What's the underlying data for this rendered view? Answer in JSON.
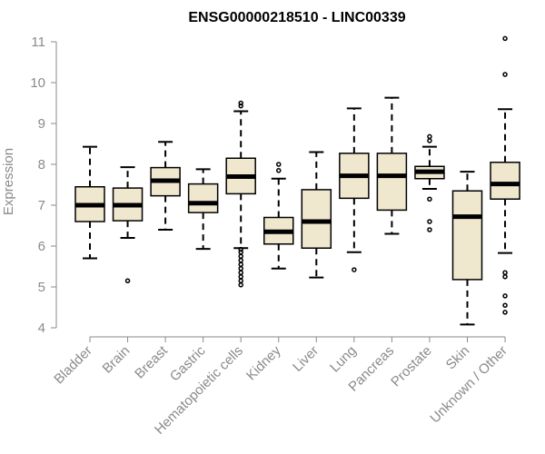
{
  "chart_data": {
    "type": "box",
    "title": "ENSG00000218510 - LINC00339",
    "xlabel": "",
    "ylabel": "Expression",
    "ylim": [
      4,
      11
    ],
    "yticks": [
      "4",
      "5",
      "6",
      "7",
      "8",
      "9",
      "10",
      "11"
    ],
    "grid": false,
    "colors": {
      "box_fill": "#efe8cf",
      "stroke": "#000000",
      "axis": "#8a8a8a"
    },
    "categories": [
      "Bladder",
      "Brain",
      "Breast",
      "Gastric",
      "Hematopoietic cells",
      "Kidney",
      "Liver",
      "Lung",
      "Pancreas",
      "Prostate",
      "Skin",
      "Unknown / Other"
    ],
    "boxes": [
      {
        "min": 5.7,
        "q1": 6.6,
        "median": 7.0,
        "q3": 7.45,
        "max": 8.43,
        "outliers": []
      },
      {
        "min": 6.2,
        "q1": 6.62,
        "median": 7.0,
        "q3": 7.42,
        "max": 7.93,
        "outliers": [
          5.15
        ]
      },
      {
        "min": 6.4,
        "q1": 7.23,
        "median": 7.6,
        "q3": 7.92,
        "max": 8.55,
        "outliers": []
      },
      {
        "min": 5.93,
        "q1": 6.82,
        "median": 7.05,
        "q3": 7.52,
        "max": 7.88,
        "outliers": []
      },
      {
        "min": 5.95,
        "q1": 7.28,
        "median": 7.7,
        "q3": 8.15,
        "max": 9.3,
        "outliers": [
          9.5,
          9.43,
          5.92,
          5.85,
          5.75,
          5.65,
          5.55,
          5.45,
          5.35,
          5.25,
          5.15,
          5.05
        ]
      },
      {
        "min": 5.45,
        "q1": 6.05,
        "median": 6.35,
        "q3": 6.7,
        "max": 7.65,
        "outliers": [
          8.0,
          7.85
        ]
      },
      {
        "min": 5.23,
        "q1": 5.95,
        "median": 6.6,
        "q3": 7.38,
        "max": 8.3,
        "outliers": []
      },
      {
        "min": 5.85,
        "q1": 7.17,
        "median": 7.72,
        "q3": 8.27,
        "max": 9.37,
        "outliers": [
          5.42
        ]
      },
      {
        "min": 6.3,
        "q1": 6.88,
        "median": 7.72,
        "q3": 8.27,
        "max": 9.63,
        "outliers": []
      },
      {
        "min": 7.4,
        "q1": 7.65,
        "median": 7.82,
        "q3": 7.95,
        "max": 8.43,
        "outliers": [
          8.68,
          8.58,
          7.15,
          6.6,
          6.4
        ]
      },
      {
        "min": 4.08,
        "q1": 5.18,
        "median": 6.72,
        "q3": 7.35,
        "max": 7.82,
        "outliers": []
      },
      {
        "min": 5.83,
        "q1": 7.15,
        "median": 7.52,
        "q3": 8.05,
        "max": 9.35,
        "outliers": [
          11.08,
          10.2,
          5.35,
          5.25,
          4.78,
          4.55,
          4.38
        ]
      }
    ]
  }
}
